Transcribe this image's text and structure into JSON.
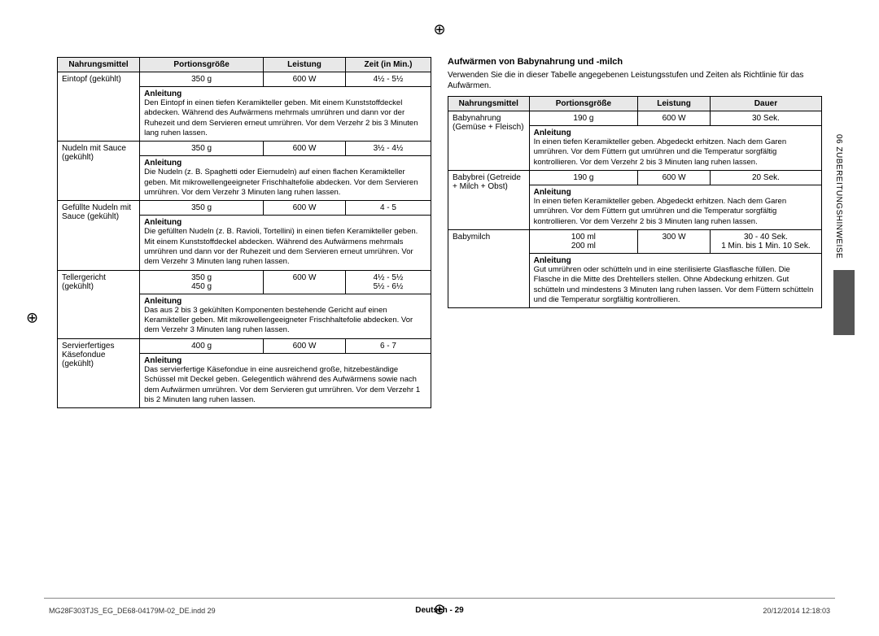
{
  "registration_mark": "⊕",
  "side_tab": "06  ZUBEREITUNGSHINWEISE",
  "left": {
    "headers": [
      "Nahrungsmittel",
      "Portionsgröße",
      "Leistung",
      "Zeit (in Min.)"
    ],
    "rows": [
      {
        "name": "Eintopf (gekühlt)",
        "portion": "350 g",
        "power": "600 W",
        "time": "4½ - 5½",
        "instr_label": "Anleitung",
        "instr": "Den Eintopf in einen tiefen Keramikteller geben. Mit einem Kunststoffdeckel abdecken. Während des Aufwärmens mehrmals umrühren und dann vor der Ruhezeit und dem Servieren erneut umrühren. Vor dem Verzehr 2 bis 3 Minuten lang ruhen lassen."
      },
      {
        "name": "Nudeln mit Sauce (gekühlt)",
        "portion": "350 g",
        "power": "600 W",
        "time": "3½ - 4½",
        "instr_label": "Anleitung",
        "instr": "Die Nudeln (z. B. Spaghetti oder Eiernudeln) auf einen flachen Keramikteller geben. Mit mikrowellengeeigneter Frischhaltefolie abdecken. Vor dem Servieren umrühren. Vor dem Verzehr 3 Minuten lang ruhen lassen."
      },
      {
        "name": "Gefüllte Nudeln mit Sauce (gekühlt)",
        "portion": "350 g",
        "power": "600 W",
        "time": "4 - 5",
        "instr_label": "Anleitung",
        "instr": "Die gefüllten Nudeln (z. B. Ravioli, Tortellini) in einen tiefen Keramikteller geben. Mit einem Kunststoffdeckel abdecken. Während des Aufwärmens mehrmals umrühren und dann vor der Ruhezeit und dem Servieren erneut umrühren. Vor dem Verzehr 3 Minuten lang ruhen lassen."
      },
      {
        "name": "Tellergericht (gekühlt)",
        "portion": "350 g\n450 g",
        "power": "600 W",
        "time": "4½ - 5½\n5½ - 6½",
        "instr_label": "Anleitung",
        "instr": "Das aus 2 bis 3 gekühlten Komponenten bestehende Gericht auf einen Keramikteller geben. Mit mikrowellengeeigneter Frischhaltefolie abdecken. Vor dem Verzehr 3 Minuten lang ruhen lassen."
      },
      {
        "name": "Servierfertiges Käsefondue (gekühlt)",
        "portion": "400 g",
        "power": "600 W",
        "time": "6 - 7",
        "instr_label": "Anleitung",
        "instr": "Das servierfertige Käsefondue in eine ausreichend große, hitzebeständige Schüssel mit Deckel geben. Gelegentlich während des Aufwärmens sowie nach dem Aufwärmen umrühren. Vor dem Servieren gut umrühren. Vor dem Verzehr 1 bis 2 Minuten lang ruhen lassen."
      }
    ]
  },
  "right": {
    "heading": "Aufwärmen von Babynahrung und -milch",
    "intro": "Verwenden Sie die in dieser Tabelle angegebenen Leistungsstufen und Zeiten als Richtlinie für das Aufwärmen.",
    "headers": [
      "Nahrungsmittel",
      "Portionsgröße",
      "Leistung",
      "Dauer"
    ],
    "rows": [
      {
        "name": "Babynahrung (Gemüse + Fleisch)",
        "portion": "190 g",
        "power": "600 W",
        "time": "30 Sek.",
        "instr_label": "Anleitung",
        "instr": "In einen tiefen Keramikteller geben. Abgedeckt erhitzen. Nach dem Garen umrühren. Vor dem Füttern gut umrühren und die Temperatur sorgfältig kontrollieren. Vor dem Verzehr 2 bis 3 Minuten lang ruhen lassen."
      },
      {
        "name": "Babybrei (Getreide + Milch + Obst)",
        "portion": "190 g",
        "power": "600 W",
        "time": "20 Sek.",
        "instr_label": "Anleitung",
        "instr": "In einen tiefen Keramikteller geben. Abgedeckt erhitzen. Nach dem Garen umrühren. Vor dem Füttern gut umrühren und die Temperatur sorgfältig kontrollieren. Vor dem Verzehr 2 bis 3 Minuten lang ruhen lassen."
      },
      {
        "name": "Babymilch",
        "portion": "100 ml\n200 ml",
        "power": "300 W",
        "time": "30 - 40 Sek.\n1 Min. bis 1 Min. 10 Sek.",
        "instr_label": "Anleitung",
        "instr": "Gut umrühren oder schütteln und in eine sterilisierte Glasflasche füllen. Die Flasche in die Mitte des Drehtellers stellen. Ohne Abdeckung erhitzen. Gut schütteln und mindestens 3 Minuten lang ruhen lassen. Vor dem Füttern schütteln und die Temperatur sorgfältig kontrollieren."
      }
    ]
  },
  "footer_center": "Deutsch - 29",
  "footer_left": "MG28F303TJS_EG_DE68-04179M-02_DE.indd   29",
  "footer_right": "20/12/2014   12:18:03"
}
